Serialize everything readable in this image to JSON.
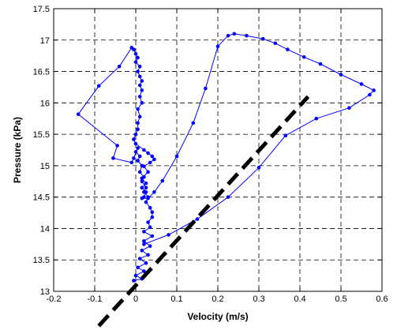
{
  "chart_data": {
    "type": "scatter",
    "title": "",
    "xlabel": "Velocity (m/s)",
    "ylabel": "Pressure (kPa)",
    "xlim": [
      -0.2,
      0.6
    ],
    "ylim": [
      13,
      17.5
    ],
    "x_ticks": [
      -0.2,
      -0.1,
      0,
      0.1,
      0.2,
      0.3,
      0.4,
      0.5,
      0.6
    ],
    "x_tick_labels": [
      "-0.2",
      "-0.1",
      "0",
      "0.1",
      "0.2",
      "0.3",
      "0.4",
      "0.5",
      "0.6"
    ],
    "y_ticks": [
      13,
      13.5,
      14,
      14.5,
      15,
      15.5,
      16,
      16.5,
      17,
      17.5
    ],
    "y_tick_labels": [
      "13",
      "13.5",
      "14",
      "14.5",
      "15",
      "15.5",
      "16",
      "16.5",
      "17",
      "17.5"
    ],
    "grid": true,
    "grid_style": "dashed",
    "series": [
      {
        "style": "line-with-markers",
        "color": "#0000ff",
        "x": [
          -0.005,
          0.015,
          0.0,
          0.02,
          0.005,
          0.025,
          0.01,
          0.03,
          0.015,
          0.035,
          0.02,
          0.04,
          0.02,
          0.035,
          0.03,
          0.04,
          0.04,
          0.035,
          0.025,
          0.03,
          0.02,
          0.025,
          0.015,
          0.02,
          0.01,
          0.015,
          0.005,
          0.01,
          0.0,
          0.005,
          -0.005,
          -0.01,
          -0.055,
          -0.045,
          -0.14,
          -0.09,
          -0.04,
          -0.01,
          -0.005,
          0.0,
          0.005,
          0.0,
          0.01,
          0.005,
          0.01,
          0.015,
          0.01,
          0.015,
          0.01,
          0.015,
          0.005,
          0.01,
          0.005,
          0.005,
          0.0,
          -0.005,
          0.0,
          0.02,
          0.03,
          0.04,
          0.045,
          0.035,
          0.02,
          0.03,
          0.015,
          0.025,
          0.015,
          0.025,
          0.02,
          0.015,
          0.03,
          0.045,
          0.065,
          0.1,
          0.14,
          0.17,
          0.2,
          0.225,
          0.24,
          0.27,
          0.31,
          0.34,
          0.37,
          0.41,
          0.45,
          0.5,
          0.55,
          0.58,
          0.57,
          0.52,
          0.44,
          0.365,
          0.3,
          0.225,
          0.15,
          0.08,
          0.02
        ],
        "y": [
          13.17,
          13.2,
          13.25,
          13.32,
          13.38,
          13.45,
          13.52,
          13.58,
          13.65,
          13.72,
          13.8,
          13.88,
          13.95,
          14.02,
          14.1,
          14.18,
          14.26,
          14.33,
          14.42,
          14.5,
          14.58,
          14.65,
          14.75,
          14.82,
          14.9,
          15.0,
          15.08,
          15.15,
          15.22,
          15.28,
          15.12,
          15.05,
          15.12,
          15.32,
          15.82,
          16.27,
          16.58,
          16.88,
          16.85,
          16.78,
          16.72,
          16.65,
          16.58,
          16.5,
          16.42,
          16.35,
          16.28,
          16.2,
          16.1,
          16.0,
          15.9,
          15.78,
          15.68,
          15.58,
          15.5,
          15.42,
          15.35,
          15.25,
          15.2,
          15.15,
          15.1,
          15.05,
          14.99,
          14.9,
          14.8,
          14.72,
          14.65,
          14.58,
          14.5,
          14.48,
          14.48,
          14.58,
          14.76,
          15.15,
          15.68,
          16.23,
          16.9,
          17.07,
          17.1,
          17.07,
          17.02,
          16.95,
          16.85,
          16.73,
          16.62,
          16.45,
          16.3,
          16.2,
          16.13,
          15.92,
          15.75,
          15.48,
          14.97,
          14.5,
          14.15,
          13.9,
          13.75
        ]
      }
    ],
    "overlays": [
      {
        "style": "thick-dashed-line",
        "color": "#000000",
        "x": [
          -0.09,
          0.42
        ],
        "y": [
          12.45,
          16.1
        ]
      }
    ]
  }
}
